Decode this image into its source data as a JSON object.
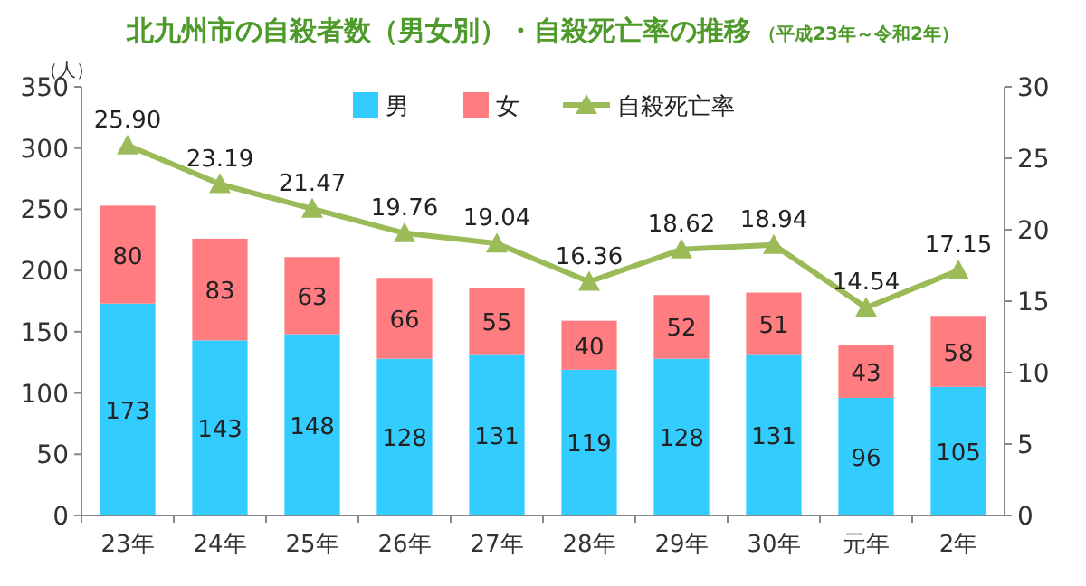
{
  "chart_data": {
    "type": "bar",
    "title": "北九州市の自殺者数（男女別）・自殺死亡率の推移",
    "subtitle": "（平成23年～令和2年）",
    "ylabel": "（人）",
    "categories": [
      "23年",
      "24年",
      "25年",
      "26年",
      "27年",
      "28年",
      "29年",
      "30年",
      "元年",
      "2年"
    ],
    "stacked": true,
    "data_labels": true,
    "legend": "top",
    "grid": false,
    "ylim": [
      0,
      350
    ],
    "yticks": [
      0,
      50,
      100,
      150,
      200,
      250,
      300,
      350
    ],
    "y2lim": [
      0,
      30
    ],
    "y2ticks": [
      0,
      5,
      10,
      15,
      20,
      25,
      30
    ],
    "series": [
      {
        "name": "男",
        "color": "#33ccff",
        "values": [
          173,
          143,
          148,
          128,
          131,
          119,
          128,
          131,
          96,
          105
        ]
      },
      {
        "name": "女",
        "color": "#ff7c80",
        "values": [
          80,
          83,
          63,
          66,
          55,
          40,
          52,
          51,
          43,
          58
        ]
      },
      {
        "name": "自殺死亡率",
        "type": "line",
        "axis": "y2",
        "color": "#9bbb59",
        "marker": "triangle",
        "line_style": "solid",
        "values": [
          25.9,
          23.19,
          21.47,
          19.76,
          19.04,
          16.36,
          18.62,
          18.94,
          14.54,
          17.15
        ],
        "value_labels": [
          "25.90",
          "23.19",
          "21.47",
          "19.76",
          "19.04",
          "16.36",
          "18.62",
          "18.94",
          "14.54",
          "17.15"
        ]
      }
    ]
  }
}
